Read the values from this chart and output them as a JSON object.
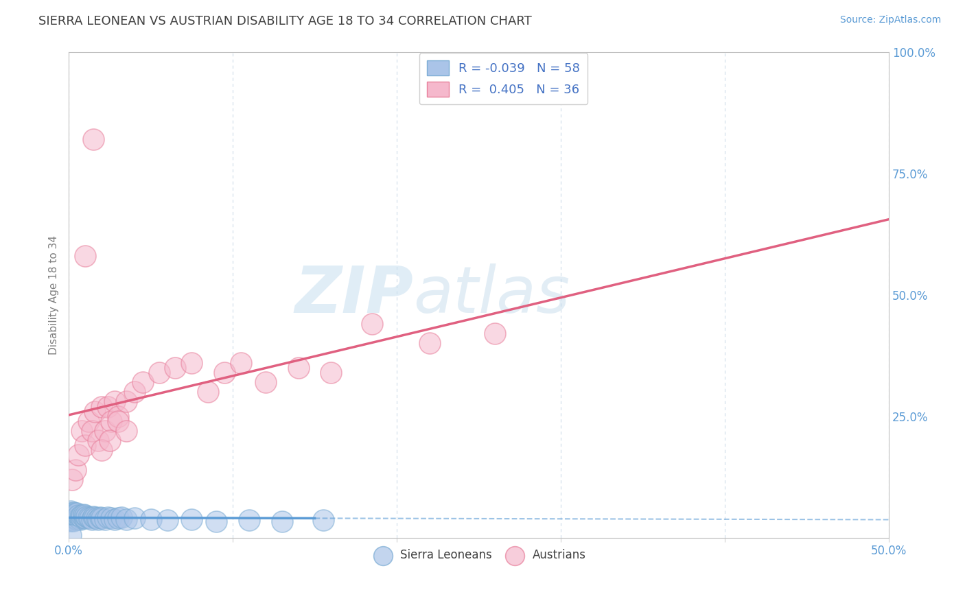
{
  "title": "SIERRA LEONEAN VS AUSTRIAN DISABILITY AGE 18 TO 34 CORRELATION CHART",
  "source_text": "Source: ZipAtlas.com",
  "ylabel": "Disability Age 18 to 34",
  "xlim": [
    0.0,
    0.5
  ],
  "ylim": [
    0.0,
    1.0
  ],
  "yticks_right": [
    0.0,
    0.25,
    0.5,
    0.75,
    1.0
  ],
  "ytick_right_labels": [
    "",
    "25.0%",
    "50.0%",
    "75.0%",
    "100.0%"
  ],
  "watermark_zip": "ZIP",
  "watermark_atlas": "atlas",
  "sierra_R": -0.039,
  "sierra_N": 58,
  "austrian_R": 0.405,
  "austrian_N": 36,
  "sierra_dot_color": "#aac4e8",
  "sierra_edge_color": "#7bacd4",
  "sierra_line_color": "#5b9bd5",
  "austrian_dot_color": "#f5b8cc",
  "austrian_edge_color": "#e8809c",
  "austrian_line_color": "#e06080",
  "background_color": "#ffffff",
  "grid_color": "#c8d8e8",
  "title_color": "#404040",
  "axis_label_color": "#5b9bd5",
  "legend_R_color": "#4472c4",
  "sierra_x": [
    0.001,
    0.001,
    0.001,
    0.001,
    0.001,
    0.001,
    0.001,
    0.001,
    0.002,
    0.002,
    0.002,
    0.002,
    0.003,
    0.003,
    0.003,
    0.003,
    0.004,
    0.004,
    0.004,
    0.005,
    0.005,
    0.005,
    0.006,
    0.006,
    0.007,
    0.007,
    0.008,
    0.008,
    0.009,
    0.009,
    0.01,
    0.01,
    0.011,
    0.012,
    0.013,
    0.014,
    0.015,
    0.016,
    0.017,
    0.018,
    0.019,
    0.02,
    0.022,
    0.024,
    0.026,
    0.028,
    0.03,
    0.032,
    0.035,
    0.04,
    0.05,
    0.06,
    0.075,
    0.09,
    0.11,
    0.13,
    0.155,
    0.001
  ],
  "sierra_y": [
    0.035,
    0.04,
    0.045,
    0.05,
    0.055,
    0.038,
    0.042,
    0.048,
    0.04,
    0.045,
    0.05,
    0.038,
    0.042,
    0.048,
    0.035,
    0.052,
    0.04,
    0.045,
    0.05,
    0.038,
    0.044,
    0.05,
    0.04,
    0.046,
    0.038,
    0.044,
    0.04,
    0.046,
    0.042,
    0.048,
    0.04,
    0.046,
    0.044,
    0.042,
    0.04,
    0.038,
    0.044,
    0.042,
    0.04,
    0.038,
    0.042,
    0.04,
    0.038,
    0.042,
    0.04,
    0.038,
    0.04,
    0.042,
    0.038,
    0.04,
    0.038,
    0.036,
    0.038,
    0.034,
    0.036,
    0.034,
    0.036,
    0.005
  ],
  "austrian_x": [
    0.002,
    0.004,
    0.006,
    0.008,
    0.01,
    0.012,
    0.014,
    0.016,
    0.018,
    0.02,
    0.022,
    0.024,
    0.026,
    0.028,
    0.03,
    0.035,
    0.04,
    0.045,
    0.055,
    0.065,
    0.075,
    0.085,
    0.095,
    0.105,
    0.12,
    0.14,
    0.16,
    0.185,
    0.22,
    0.26,
    0.01,
    0.015,
    0.02,
    0.025,
    0.03,
    0.035
  ],
  "austrian_y": [
    0.12,
    0.14,
    0.17,
    0.22,
    0.19,
    0.24,
    0.22,
    0.26,
    0.2,
    0.27,
    0.22,
    0.27,
    0.24,
    0.28,
    0.25,
    0.28,
    0.3,
    0.32,
    0.34,
    0.35,
    0.36,
    0.3,
    0.34,
    0.36,
    0.32,
    0.35,
    0.34,
    0.44,
    0.4,
    0.42,
    0.58,
    0.82,
    0.18,
    0.2,
    0.24,
    0.22
  ],
  "sierra_line_start_x": 0.0,
  "sierra_line_end_x": 0.5,
  "austrian_line_start_x": 0.0,
  "austrian_line_end_x": 0.5
}
